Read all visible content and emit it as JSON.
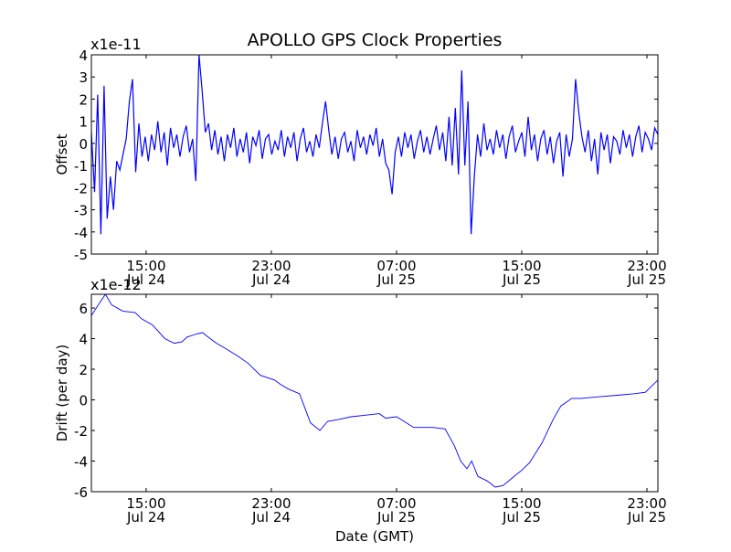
{
  "chart_data": [
    {
      "type": "line",
      "title": "APOLLO GPS Clock Properties",
      "ylabel": "Offset",
      "xlabel": "",
      "scale_label": "x1e-11",
      "ylim": [
        -5,
        4
      ],
      "yticks": [
        "-5",
        "-4",
        "-3",
        "-2",
        "-1",
        "0",
        "1",
        "2",
        "3",
        "4"
      ],
      "xlim_hours_from_jul24_0000": [
        11.5,
        47.7
      ],
      "xticks": [
        {
          "hour": 15,
          "time": "15:00",
          "date": "Jul 24"
        },
        {
          "hour": 23,
          "time": "23:00",
          "date": "Jul 24"
        },
        {
          "hour": 31,
          "time": "07:00",
          "date": "Jul 25"
        },
        {
          "hour": 39,
          "time": "15:00",
          "date": "Jul 25"
        },
        {
          "hour": 47,
          "time": "23:00",
          "date": "Jul 25"
        }
      ],
      "color": "#0000ff",
      "series": [
        {
          "name": "Offset",
          "x_start": 11.5,
          "x_end": 47.7,
          "values": [
            0.5,
            -2.2,
            2.2,
            -4.1,
            2.6,
            -3.4,
            -1.5,
            -3.0,
            -0.8,
            -1.2,
            -0.5,
            0.2,
            1.9,
            2.9,
            -1.3,
            0.9,
            -0.6,
            0.3,
            -0.8,
            0.4,
            -0.3,
            1.0,
            -0.4,
            0.5,
            -1.0,
            0.7,
            -0.2,
            0.4,
            -0.6,
            0.3,
            0.8,
            -0.4,
            0.2,
            -1.7,
            4.0,
            2.4,
            0.5,
            0.9,
            -0.3,
            0.6,
            -0.5,
            0.3,
            -0.8,
            0.4,
            -0.2,
            0.7,
            -0.6,
            0.2,
            -0.4,
            0.5,
            -0.9,
            0.3,
            -0.1,
            0.6,
            -0.7,
            0.2,
            0.4,
            -0.5,
            0.1,
            -0.3,
            0.6,
            -0.6,
            0.3,
            -0.2,
            0.5,
            -0.8,
            0.2,
            0.7,
            -0.4,
            0.1,
            -0.6,
            0.4,
            -0.2,
            0.9,
            1.9,
            0.6,
            -0.5,
            0.3,
            -0.7,
            0.2,
            0.5,
            -0.4,
            0.1,
            -0.8,
            0.6,
            -0.2,
            0.3,
            -0.5,
            0.4,
            -0.1,
            0.7,
            -0.6,
            0.2,
            -0.9,
            -1.2,
            -2.3,
            -0.4,
            0.3,
            -0.6,
            0.5,
            -0.2,
            0.4,
            -0.7,
            0.1,
            0.6,
            -0.4,
            0.3,
            -0.5,
            0.2,
            0.8,
            -0.3,
            0.5,
            -0.8,
            1.2,
            -1.0,
            1.6,
            -1.4,
            3.3,
            -1.0,
            1.9,
            -4.1,
            -1.5,
            0.4,
            -0.6,
            0.9,
            -0.3,
            0.2,
            -0.5,
            0.6,
            -0.2,
            0.4,
            -0.7,
            0.3,
            0.8,
            -0.4,
            0.1,
            0.5,
            -0.6,
            1.2,
            -0.3,
            0.4,
            -0.8,
            0.2,
            0.6,
            -0.5,
            0.3,
            -0.9,
            0.1,
            0.5,
            -1.5,
            0.4,
            -0.6,
            0.2,
            2.9,
            1.4,
            0.3,
            -0.4,
            0.6,
            -0.8,
            0.2,
            -1.4,
            0.5,
            -0.3,
            0.4,
            -0.9,
            0.3,
            0.1,
            -0.5,
            0.6,
            -0.2,
            0.4,
            -0.6,
            0.3,
            0.8,
            -0.4,
            0.5,
            0.2,
            -0.3,
            0.7,
            0.4
          ]
        }
      ]
    },
    {
      "type": "line",
      "title": "",
      "ylabel": "Drift (per day)",
      "xlabel": "Date (GMT)",
      "scale_label": "x1e-12",
      "ylim": [
        -6,
        6.9
      ],
      "yticks": [
        "-6",
        "-4",
        "-2",
        "0",
        "2",
        "4",
        "6"
      ],
      "ytick_values": [
        -6,
        -4,
        -2,
        0,
        2,
        4,
        6
      ],
      "xlim_hours_from_jul24_0000": [
        11.5,
        47.7
      ],
      "xticks": [
        {
          "hour": 15,
          "time": "15:00",
          "date": "Jul 24"
        },
        {
          "hour": 23,
          "time": "23:00",
          "date": "Jul 24"
        },
        {
          "hour": 31,
          "time": "07:00",
          "date": "Jul 25"
        },
        {
          "hour": 39,
          "time": "15:00",
          "date": "Jul 25"
        },
        {
          "hour": 47,
          "time": "23:00",
          "date": "Jul 25"
        }
      ],
      "color": "#0000ff",
      "series": [
        {
          "name": "Drift",
          "x": [
            11.5,
            12.0,
            12.4,
            12.8,
            13.5,
            14.3,
            14.7,
            15.4,
            16.2,
            16.8,
            17.3,
            17.6,
            18.2,
            18.6,
            19.1,
            19.5,
            20.0,
            20.8,
            21.5,
            22.3,
            23.2,
            23.6,
            24.1,
            24.8,
            25.5,
            26.1,
            26.6,
            27.2,
            28.1,
            29.0,
            29.9,
            30.3,
            31.0,
            32.1,
            32.7,
            33.3,
            34.1,
            34.7,
            35.1,
            35.5,
            35.8,
            36.2,
            36.8,
            37.3,
            37.8,
            38.4,
            39.0,
            39.5,
            40.3,
            41.0,
            41.5,
            42.2,
            42.8,
            43.9,
            45.1,
            46.2,
            46.9,
            47.7
          ],
          "y": [
            5.5,
            6.3,
            6.9,
            6.2,
            5.8,
            5.7,
            5.3,
            4.9,
            4.0,
            3.7,
            3.8,
            4.1,
            4.3,
            4.4,
            4.0,
            3.7,
            3.4,
            2.9,
            2.4,
            1.6,
            1.3,
            1.0,
            0.7,
            0.4,
            -1.5,
            -2.0,
            -1.4,
            -1.3,
            -1.1,
            -1.0,
            -0.9,
            -1.2,
            -1.1,
            -1.8,
            -1.8,
            -1.8,
            -1.9,
            -3.0,
            -4.0,
            -4.5,
            -4.0,
            -5.0,
            -5.3,
            -5.7,
            -5.6,
            -5.1,
            -4.6,
            -4.1,
            -2.8,
            -1.3,
            -0.4,
            0.1,
            0.1,
            0.2,
            0.3,
            0.4,
            0.5,
            1.3
          ]
        }
      ]
    }
  ]
}
